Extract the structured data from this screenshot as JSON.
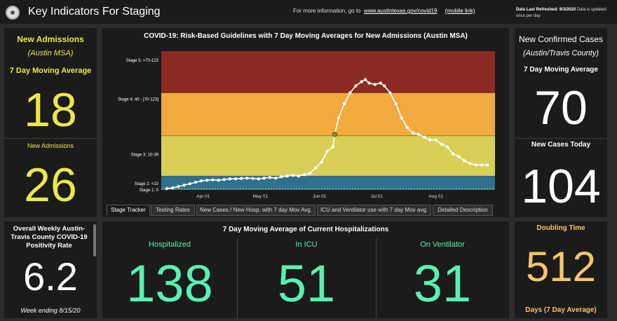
{
  "header": {
    "title": "Key Indicators For Staging",
    "info_prefix": "For more information, go to",
    "info_link": "www.austintexas.gov/covid19",
    "mobile_link": "(mobile link)",
    "refresh_label": "Data Last Refreshed:",
    "refresh_date": "9/3/2020",
    "refresh_note": "Data is updated once per day",
    "logo_icon": "city-seal-icon"
  },
  "left_top": {
    "title": "New Admissions",
    "subtitle": "(Austin MSA)",
    "avg_label": "7 Day Moving Average",
    "avg_value": "18",
    "today_label": "New Admissions",
    "today_value": "26"
  },
  "right_top": {
    "title": "New Confirmed Cases",
    "subtitle": "(Austin/Travis County)",
    "avg_label": "7 Day Moving Average",
    "avg_value": "70",
    "today_label": "New Cases Today",
    "today_value": "104"
  },
  "positivity": {
    "title": "Overall  Weekly Austin-Travis County COVID-19 Positivity Rate",
    "value": "6.2",
    "note": "Week ending 8/15/20"
  },
  "hospital": {
    "title": "7 Day Moving Average of Current Hospitalizations",
    "cols": [
      {
        "label": "Hospitalized",
        "value": "138"
      },
      {
        "label": "In ICU",
        "value": "51"
      },
      {
        "label": "On Ventilator",
        "value": "31"
      }
    ]
  },
  "doubling": {
    "title": "Doubling Time",
    "value": "512",
    "footer": "Days (7 Day Average)"
  },
  "tabs": [
    {
      "label": "Stage Tracker",
      "active": true
    },
    {
      "label": "Testing Rates",
      "active": false
    },
    {
      "label": "New Cases / New Hosp. with 7 day Mov Avg.",
      "active": false
    },
    {
      "label": "ICU and Ventilator use with 7 day Mov avg.",
      "active": false
    },
    {
      "label": "Detailed Description",
      "active": false
    }
  ],
  "chart_data": {
    "type": "line",
    "title": "COVID-19: Risk-Based Guidelines with 7 Day Moving Averages for New Admissions (Austin MSA)",
    "xlabel": "",
    "ylabel": "",
    "x_ticks": [
      "Apr 01",
      "May 01",
      "Jun 01",
      "Jul 01",
      "Aug 01"
    ],
    "y_tick_labels": [
      "Stage 5: >70-123",
      "Stage 4: 40 - [70-123]",
      "Stage 3: 10-39",
      "Stage 2: <10",
      "Stage 1: 0"
    ],
    "stage_bands": [
      {
        "name": "Stage 1",
        "from": 0,
        "to": 0.8,
        "color": "#2f6f8f"
      },
      {
        "name": "Stage 2",
        "from": 0.8,
        "to": 10,
        "color": "#2f6f8f"
      },
      {
        "name": "Stage 3",
        "from": 10,
        "to": 39,
        "color": "#d9cf57"
      },
      {
        "name": "Stage 4",
        "from": 39,
        "to": 70,
        "color": "#f0aa3d"
      },
      {
        "name": "Stage 5",
        "from": 70,
        "to": 100,
        "color": "#8b2a23"
      }
    ],
    "ylim": [
      0,
      100
    ],
    "xlim": [
      "2020-03-10",
      "2020-09-01"
    ],
    "series": [
      {
        "color": "#ffffff",
        "points": [
          [
            "2020-03-13",
            1
          ],
          [
            "2020-03-16",
            1.5
          ],
          [
            "2020-03-19",
            2.5
          ],
          [
            "2020-03-22",
            3.5
          ],
          [
            "2020-03-25",
            4.5
          ],
          [
            "2020-03-28",
            5.5
          ],
          [
            "2020-03-31",
            6.5
          ],
          [
            "2020-04-03",
            7
          ],
          [
            "2020-04-06",
            7.3
          ],
          [
            "2020-04-09",
            7
          ],
          [
            "2020-04-12",
            7.5
          ],
          [
            "2020-04-15",
            8
          ],
          [
            "2020-04-18",
            8
          ],
          [
            "2020-04-21",
            8.3
          ],
          [
            "2020-04-24",
            8.5
          ],
          [
            "2020-04-27",
            8.3
          ],
          [
            "2020-04-30",
            8
          ],
          [
            "2020-05-03",
            8.5
          ],
          [
            "2020-05-06",
            9
          ],
          [
            "2020-05-09",
            8.5
          ],
          [
            "2020-05-12",
            9.5
          ],
          [
            "2020-05-15",
            10
          ],
          [
            "2020-05-18",
            10.5
          ],
          [
            "2020-05-21",
            10
          ],
          [
            "2020-05-24",
            11
          ],
          [
            "2020-05-27",
            12
          ],
          [
            "2020-05-30",
            16
          ],
          [
            "2020-06-02",
            20
          ],
          [
            "2020-06-05",
            28
          ],
          [
            "2020-06-08",
            31
          ],
          [
            "2020-06-09",
            40
          ],
          [
            "2020-06-11",
            52
          ],
          [
            "2020-06-14",
            62
          ],
          [
            "2020-06-17",
            70
          ],
          [
            "2020-06-20",
            75
          ],
          [
            "2020-06-23",
            78
          ],
          [
            "2020-06-25",
            79.5
          ],
          [
            "2020-06-27",
            77
          ],
          [
            "2020-06-30",
            76
          ],
          [
            "2020-07-03",
            77
          ],
          [
            "2020-07-05",
            75
          ],
          [
            "2020-07-08",
            70
          ],
          [
            "2020-07-11",
            62
          ],
          [
            "2020-07-14",
            52
          ],
          [
            "2020-07-17",
            45
          ],
          [
            "2020-07-20",
            41
          ],
          [
            "2020-07-23",
            40
          ],
          [
            "2020-07-26",
            38
          ],
          [
            "2020-07-29",
            36
          ],
          [
            "2020-08-01",
            36
          ],
          [
            "2020-08-04",
            33
          ],
          [
            "2020-08-07",
            31
          ],
          [
            "2020-08-10",
            26
          ],
          [
            "2020-08-13",
            24
          ],
          [
            "2020-08-16",
            21
          ],
          [
            "2020-08-19",
            19
          ],
          [
            "2020-08-22",
            18
          ],
          [
            "2020-08-25",
            18
          ],
          [
            "2020-08-28",
            18
          ]
        ]
      }
    ],
    "highlight_point": [
      "2020-06-09",
      40
    ]
  }
}
